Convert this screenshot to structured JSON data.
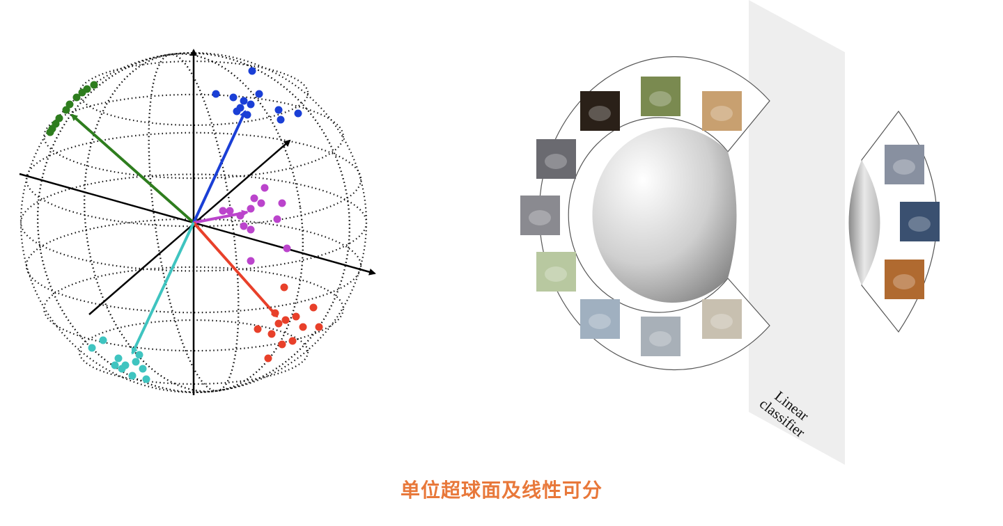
{
  "caption": "单位超球面及线性可分",
  "plane_label": {
    "line1": "Linear",
    "line2": "classifier"
  },
  "colors": {
    "caption": "#e8783a",
    "green": "#2e7d1e",
    "blue": "#1a3fd6",
    "magenta": "#bb44cc",
    "red": "#e8402a",
    "cyan": "#3fc4c0",
    "plane": "#eeeeee"
  },
  "thumbnails": [
    {
      "icon": "dog-photo-icon"
    },
    {
      "icon": "dog-photo-icon"
    },
    {
      "icon": "dog-photo-icon"
    },
    {
      "icon": "car-photo-icon"
    },
    {
      "icon": "car-photo-icon"
    },
    {
      "icon": "car-photo-icon"
    },
    {
      "icon": "airplane-photo-icon"
    },
    {
      "icon": "airplane-photo-icon"
    },
    {
      "icon": "airplane-photo-icon"
    },
    {
      "icon": "cat-photo-icon"
    },
    {
      "icon": "cat-photo-icon"
    },
    {
      "icon": "cat-photo-icon"
    }
  ]
}
